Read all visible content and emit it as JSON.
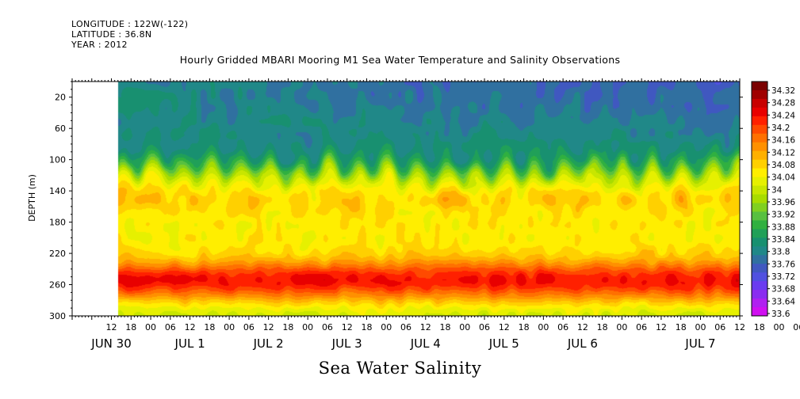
{
  "header": {
    "longitude": "LONGITUDE : 122W(-122)",
    "latitude": "LATITUDE : 36.8N",
    "year": "YEAR : 2012"
  },
  "chart_data": {
    "type": "heatmap",
    "title": "Hourly Gridded MBARI Mooring M1 Sea Water Temperature and Salinity Observations",
    "xtitle": "Sea Water Salinity",
    "ylabel": "DEPTH (m)",
    "ylim": [
      300,
      0
    ],
    "yticks": [
      20,
      60,
      100,
      140,
      180,
      220,
      260,
      300
    ],
    "x_range_hours": [
      0,
      204
    ],
    "data_start_hour": 14,
    "x_hour_ticks": [
      "12",
      "18",
      "00",
      "06",
      "12",
      "18",
      "00",
      "06",
      "12",
      "18",
      "00",
      "06",
      "12",
      "18",
      "00",
      "06",
      "12",
      "18",
      "00",
      "06",
      "12",
      "18",
      "00",
      "06",
      "12",
      "18",
      "00",
      "06",
      "12",
      "18",
      "00",
      "06",
      "12",
      "18",
      "00",
      "06"
    ],
    "x_day_labels": [
      "JUN 30",
      "JUL  1",
      "JUL  2",
      "JUL  3",
      "JUL  4",
      "JUL  5",
      "JUL  6",
      "JUL  7"
    ],
    "colorbar": {
      "levels": [
        "34.32",
        "34.28",
        "34.24",
        "34.2",
        "34.16",
        "34.12",
        "34.08",
        "34.04",
        "34",
        "33.96",
        "33.92",
        "33.88",
        "33.84",
        "33.8",
        "33.76",
        "33.72",
        "33.68",
        "33.64",
        "33.6"
      ],
      "colors": [
        "#7a0000",
        "#a00000",
        "#c80000",
        "#e80000",
        "#ff2000",
        "#ff4a00",
        "#ff7000",
        "#ff9000",
        "#ffb000",
        "#ffd000",
        "#ffee00",
        "#e6f000",
        "#c8e600",
        "#a8dc00",
        "#80d020",
        "#58c040",
        "#30b040",
        "#20a058",
        "#189070",
        "#208888",
        "#3070a0",
        "#4058c0",
        "#5050e0",
        "#6a3cf0",
        "#8a2cf0",
        "#b020f0",
        "#d010f0"
      ]
    },
    "profile_note": "Salinity increases with depth: ~33.76-33.84 near surface, yellow halocline ~100-130 m, orange ~140-230 m, maximum ~34.3 near 250-265 m"
  }
}
